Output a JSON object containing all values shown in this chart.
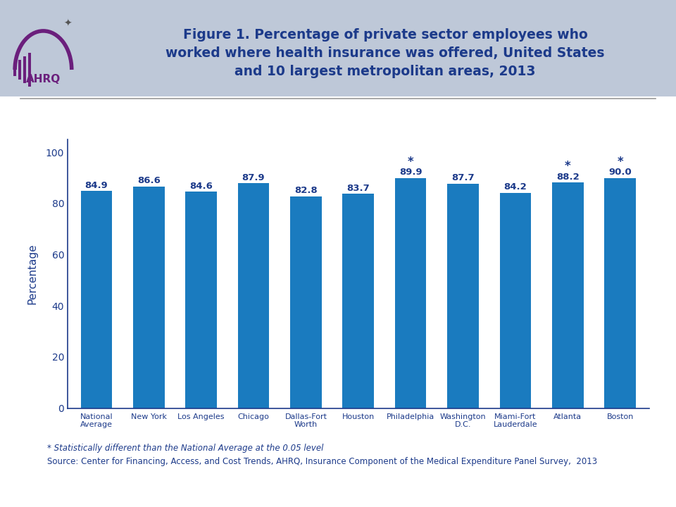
{
  "title": "Figure 1. Percentage of private sector employees who\nworked where health insurance was offered, United States\nand 10 largest metropolitan areas, 2013",
  "title_color": "#1c3a8a",
  "title_fontsize": 13.5,
  "ylabel": "Percentage",
  "ylabel_color": "#1c3a8a",
  "ylabel_fontsize": 11,
  "categories": [
    "National\nAverage",
    "New York",
    "Los Angeles",
    "Chicago",
    "Dallas-Fort\nWorth",
    "Houston",
    "Philadelphia",
    "Washington\nD.C.",
    "Miami-Fort\nLauderdale",
    "Atlanta",
    "Boston"
  ],
  "values": [
    84.9,
    86.6,
    84.6,
    87.9,
    82.8,
    83.7,
    89.9,
    87.7,
    84.2,
    88.2,
    90.0
  ],
  "bar_color": "#1a7bbf",
  "bar_label_color": "#1c3a8a",
  "bar_label_fontsize": 9.5,
  "significant": [
    false,
    false,
    false,
    false,
    false,
    false,
    true,
    false,
    false,
    true,
    true
  ],
  "star_color": "#1c3a8a",
  "star_fontsize": 12,
  "ylim": [
    0,
    105
  ],
  "yticks": [
    0,
    20,
    40,
    60,
    80,
    100
  ],
  "tick_color": "#1c3a8a",
  "axis_color": "#1c3a8a",
  "footnote1": "* Statistically different than the National Average at the 0.05 level",
  "footnote2": "Source: Center for Financing, Access, and Cost Trends, AHRQ, Insurance Component of the Medical Expenditure Panel Survey,  2013",
  "footnote_color": "#1c3a8a",
  "footnote_fontsize": 8.5,
  "separator_color": "#999999",
  "header_bg_color": "#bec8d8"
}
